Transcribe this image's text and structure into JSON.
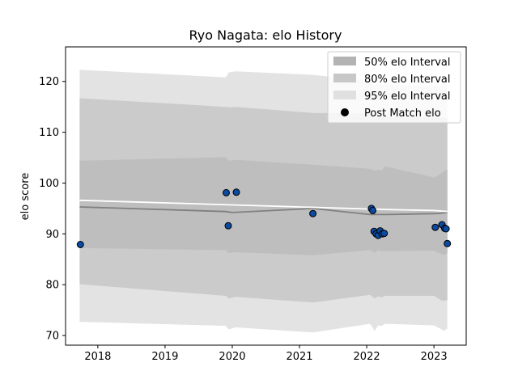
{
  "chart_data": {
    "type": "line",
    "title": "Ryo Nagata: elo History",
    "xlabel": "",
    "ylabel": "elo score",
    "xlim": [
      2017.52,
      2023.48
    ],
    "ylim": [
      68.1,
      126.8
    ],
    "xticks": [
      2018,
      2019,
      2020,
      2021,
      2022,
      2023
    ],
    "yticks": [
      70,
      80,
      90,
      100,
      110,
      120
    ],
    "grid": false,
    "legend_position": "top-right",
    "legend": [
      {
        "label": "50% elo Interval",
        "kind": "band",
        "color": "#b3b3b3"
      },
      {
        "label": "80% elo Interval",
        "kind": "band",
        "color": "#c8c8c8"
      },
      {
        "label": "95% elo Interval",
        "kind": "band",
        "color": "#e0e0e0"
      },
      {
        "label": "Post Match elo",
        "kind": "marker",
        "color": "#000000"
      }
    ],
    "colors": {
      "band95": "#e3e3e3",
      "band80": "#cbcbcb",
      "band50": "#bebebe",
      "median_line": "#808080",
      "mean_line": "#ffffff",
      "point_fill": "#0b4aa0",
      "point_edge": "#000000"
    },
    "bands": {
      "x": [
        2017.73,
        2019.9,
        2019.95,
        2020.05,
        2021.2,
        2022.05,
        2022.12,
        2022.17,
        2022.22,
        2022.27,
        2023.0,
        2023.1,
        2023.15,
        2023.2
      ],
      "band95": {
        "upper": [
          122.3,
          120.8,
          121.8,
          122.0,
          121.3,
          120.1,
          119.0,
          119.8,
          119.4,
          119.5,
          119.0,
          118.9,
          119.5,
          119.6
        ],
        "lower": [
          72.7,
          71.9,
          71.2,
          71.6,
          70.6,
          72.3,
          70.9,
          72.0,
          71.9,
          72.3,
          72.0,
          71.3,
          70.9,
          71.4
        ]
      },
      "band80": {
        "upper": [
          116.7,
          115.0,
          114.9,
          115.0,
          113.8,
          113.7,
          112.6,
          113.1,
          113.0,
          113.0,
          113.0,
          112.8,
          112.8,
          112.8
        ],
        "lower": [
          80.1,
          77.8,
          77.3,
          77.6,
          76.5,
          78.0,
          77.3,
          77.7,
          77.5,
          77.8,
          77.8,
          77.0,
          76.8,
          77.0
        ]
      },
      "band50": {
        "upper": [
          104.4,
          105.1,
          104.4,
          104.6,
          103.6,
          102.8,
          102.4,
          102.6,
          102.5,
          103.3,
          101.1,
          101.8,
          102.4,
          102.7
        ],
        "lower": [
          87.2,
          86.8,
          86.2,
          86.4,
          85.8,
          86.8,
          86.3,
          86.8,
          86.6,
          86.6,
          86.7,
          86.1,
          85.9,
          86.2
        ]
      }
    },
    "series": [
      {
        "style": "median",
        "x": [
          2017.73,
          2019.9,
          2020.0,
          2021.2,
          2022.05,
          2022.3,
          2023.05,
          2023.2
        ],
        "values": [
          95.3,
          94.4,
          94.2,
          95.0,
          93.8,
          93.8,
          94.0,
          94.2
        ]
      },
      {
        "style": "mean",
        "x": [
          2017.73,
          2020.0,
          2021.0,
          2022.0,
          2022.3,
          2023.0,
          2023.2
        ],
        "values": [
          96.6,
          95.7,
          95.3,
          94.9,
          94.8,
          94.6,
          94.4
        ]
      },
      {
        "style": "points",
        "x": [
          2017.74,
          2019.91,
          2019.94,
          2020.06,
          2021.2,
          2022.07,
          2022.09,
          2022.11,
          2022.14,
          2022.17,
          2022.2,
          2022.23,
          2022.26,
          2023.02,
          2023.12,
          2023.16,
          2023.18,
          2023.2
        ],
        "values": [
          87.9,
          98.1,
          91.6,
          98.2,
          94.0,
          95.0,
          94.6,
          90.5,
          90.0,
          89.7,
          90.6,
          90.0,
          90.1,
          91.3,
          91.8,
          91.1,
          91.0,
          88.1
        ]
      }
    ]
  }
}
